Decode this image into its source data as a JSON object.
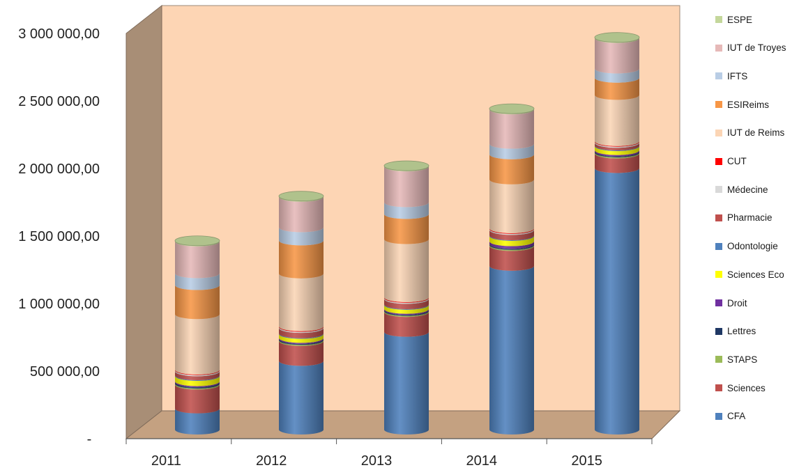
{
  "chart_data": {
    "type": "bar",
    "stacked": true,
    "three_d": "cylinder",
    "categories": [
      "2011",
      "2012",
      "2013",
      "2014",
      "2015"
    ],
    "y_ticks": [
      {
        "value": 0,
        "label": "-"
      },
      {
        "value": 500000,
        "label": "500 000,00"
      },
      {
        "value": 1000000,
        "label": "1 000 000,00"
      },
      {
        "value": 1500000,
        "label": "1 500 000,00"
      },
      {
        "value": 2000000,
        "label": "2 000 000,00"
      },
      {
        "value": 2500000,
        "label": "2 500 000,00"
      },
      {
        "value": 3000000,
        "label": "3 000 000,00"
      }
    ],
    "ylim": [
      0,
      3000000
    ],
    "grid": false,
    "legend_position": "right",
    "wall_color": "#FDD5B4",
    "floor_color": "#C4A181",
    "side_wall_color": "#A88E76",
    "series": [
      {
        "name": "CFA",
        "color": "#4F81BD",
        "values": [
          160000,
          520000,
          740000,
          1240000,
          1980000
        ]
      },
      {
        "name": "Sciences",
        "color": "#C0504D",
        "values": [
          180000,
          150000,
          150000,
          150000,
          110000
        ]
      },
      {
        "name": "STAPS",
        "color": "#9BBB59",
        "values": [
          8000,
          8000,
          8000,
          8000,
          8000
        ]
      },
      {
        "name": "Lettres",
        "color": "#1F3864",
        "values": [
          10000,
          8000,
          8000,
          8000,
          8000
        ]
      },
      {
        "name": "Droit",
        "color": "#7030A0",
        "values": [
          8000,
          8000,
          8000,
          20000,
          10000
        ]
      },
      {
        "name": "Sciences Eco",
        "color": "#FFFF00",
        "values": [
          40000,
          30000,
          30000,
          40000,
          30000
        ]
      },
      {
        "name": "Odontologie",
        "color": "#4F81BD",
        "values": [
          5000,
          5000,
          5000,
          5000,
          5000
        ]
      },
      {
        "name": "Pharmacie",
        "color": "#C0504D",
        "values": [
          30000,
          40000,
          40000,
          40000,
          20000
        ]
      },
      {
        "name": "Médecine",
        "color": "#D9D9D9",
        "values": [
          8000,
          8000,
          8000,
          8000,
          8000
        ]
      },
      {
        "name": "CUT",
        "color": "#FF0000",
        "values": [
          5000,
          5000,
          5000,
          5000,
          5000
        ]
      },
      {
        "name": "IUT de Reims",
        "color": "#FBD5B5",
        "values": [
          420000,
          400000,
          440000,
          370000,
          350000
        ]
      },
      {
        "name": "ESIReims",
        "color": "#F79646",
        "values": [
          220000,
          250000,
          190000,
          190000,
          130000
        ]
      },
      {
        "name": "IFTS",
        "color": "#B9CDE5",
        "values": [
          90000,
          100000,
          90000,
          80000,
          70000
        ]
      },
      {
        "name": "IUT de Troyes",
        "color": "#E6B9B8",
        "values": [
          240000,
          230000,
          270000,
          260000,
          230000
        ]
      },
      {
        "name": "ESPE",
        "color": "#C4D79B",
        "values": [
          6000,
          6000,
          6000,
          6000,
          6000
        ]
      }
    ]
  }
}
